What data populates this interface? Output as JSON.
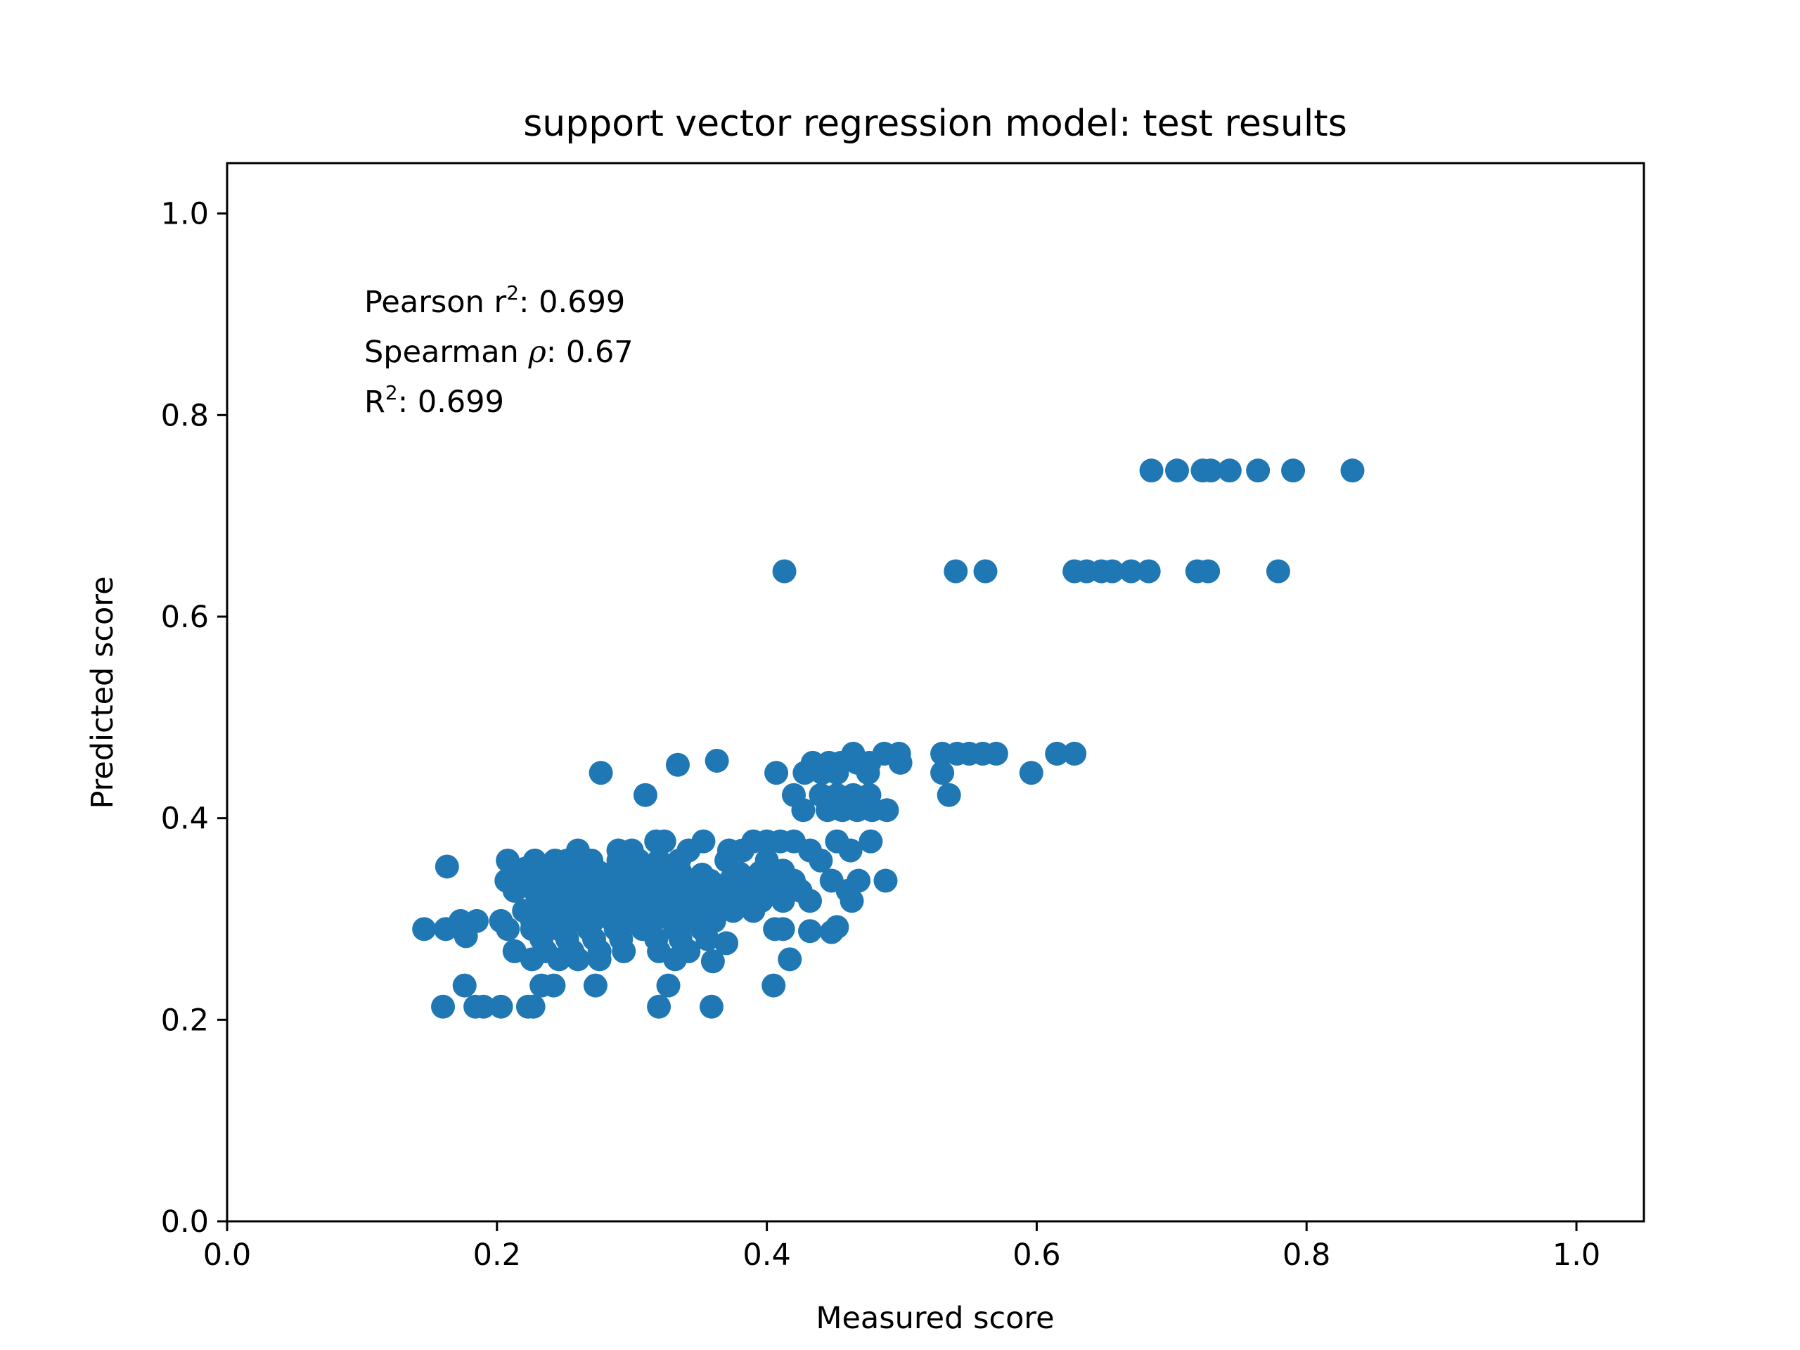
{
  "chart_data": {
    "type": "scatter",
    "title": "support vector regression model: test results",
    "xlabel": "Measured score",
    "ylabel": "Predicted score",
    "xlim": [
      0.0,
      1.05
    ],
    "ylim": [
      0.0,
      1.05
    ],
    "xticks": [
      "0.0",
      "0.2",
      "0.4",
      "0.6",
      "0.8",
      "1.0"
    ],
    "yticks": [
      "0.0",
      "0.2",
      "0.4",
      "0.6",
      "0.8",
      "1.0"
    ],
    "grid": false,
    "legend": null,
    "marker_color": "#1f77b4",
    "annotations": {
      "pearson": {
        "prefix": "Pearson r",
        "sup": "2",
        "suffix": ": 0.699"
      },
      "spearman": {
        "prefix": "Spearman ",
        "symbol": "ρ",
        "suffix": ": 0.67"
      },
      "r2": {
        "prefix": "R",
        "sup": "2",
        "suffix": ": 0.699"
      }
    },
    "points": [
      [
        0.685,
        0.745
      ],
      [
        0.704,
        0.745
      ],
      [
        0.723,
        0.745
      ],
      [
        0.729,
        0.745
      ],
      [
        0.743,
        0.745
      ],
      [
        0.764,
        0.745
      ],
      [
        0.79,
        0.745
      ],
      [
        0.834,
        0.745
      ],
      [
        0.413,
        0.645
      ],
      [
        0.54,
        0.645
      ],
      [
        0.562,
        0.645
      ],
      [
        0.628,
        0.645
      ],
      [
        0.637,
        0.645
      ],
      [
        0.648,
        0.645
      ],
      [
        0.656,
        0.645
      ],
      [
        0.67,
        0.645
      ],
      [
        0.683,
        0.645
      ],
      [
        0.719,
        0.645
      ],
      [
        0.727,
        0.645
      ],
      [
        0.779,
        0.645
      ],
      [
        0.464,
        0.464
      ],
      [
        0.487,
        0.464
      ],
      [
        0.498,
        0.464
      ],
      [
        0.53,
        0.464
      ],
      [
        0.541,
        0.464
      ],
      [
        0.55,
        0.464
      ],
      [
        0.56,
        0.464
      ],
      [
        0.57,
        0.464
      ],
      [
        0.615,
        0.464
      ],
      [
        0.628,
        0.464
      ],
      [
        0.434,
        0.455
      ],
      [
        0.446,
        0.455
      ],
      [
        0.455,
        0.455
      ],
      [
        0.467,
        0.455
      ],
      [
        0.476,
        0.455
      ],
      [
        0.499,
        0.455
      ],
      [
        0.363,
        0.457
      ],
      [
        0.334,
        0.453
      ],
      [
        0.277,
        0.445
      ],
      [
        0.407,
        0.445
      ],
      [
        0.428,
        0.445
      ],
      [
        0.441,
        0.445
      ],
      [
        0.452,
        0.445
      ],
      [
        0.475,
        0.445
      ],
      [
        0.53,
        0.445
      ],
      [
        0.596,
        0.445
      ],
      [
        0.31,
        0.423
      ],
      [
        0.42,
        0.423
      ],
      [
        0.44,
        0.423
      ],
      [
        0.452,
        0.423
      ],
      [
        0.464,
        0.423
      ],
      [
        0.476,
        0.423
      ],
      [
        0.535,
        0.423
      ],
      [
        0.427,
        0.408
      ],
      [
        0.445,
        0.408
      ],
      [
        0.456,
        0.408
      ],
      [
        0.467,
        0.408
      ],
      [
        0.478,
        0.408
      ],
      [
        0.489,
        0.408
      ],
      [
        0.318,
        0.377
      ],
      [
        0.324,
        0.377
      ],
      [
        0.353,
        0.377
      ],
      [
        0.39,
        0.377
      ],
      [
        0.4,
        0.377
      ],
      [
        0.41,
        0.377
      ],
      [
        0.42,
        0.377
      ],
      [
        0.452,
        0.377
      ],
      [
        0.477,
        0.377
      ],
      [
        0.26,
        0.368
      ],
      [
        0.29,
        0.368
      ],
      [
        0.3,
        0.368
      ],
      [
        0.342,
        0.368
      ],
      [
        0.372,
        0.368
      ],
      [
        0.382,
        0.368
      ],
      [
        0.432,
        0.368
      ],
      [
        0.462,
        0.368
      ],
      [
        0.208,
        0.358
      ],
      [
        0.228,
        0.358
      ],
      [
        0.243,
        0.358
      ],
      [
        0.252,
        0.358
      ],
      [
        0.27,
        0.358
      ],
      [
        0.29,
        0.358
      ],
      [
        0.305,
        0.358
      ],
      [
        0.32,
        0.358
      ],
      [
        0.335,
        0.358
      ],
      [
        0.37,
        0.358
      ],
      [
        0.4,
        0.358
      ],
      [
        0.44,
        0.358
      ],
      [
        0.163,
        0.352
      ],
      [
        0.221,
        0.35
      ],
      [
        0.234,
        0.348
      ],
      [
        0.248,
        0.346
      ],
      [
        0.262,
        0.345
      ],
      [
        0.276,
        0.346
      ],
      [
        0.292,
        0.344
      ],
      [
        0.308,
        0.343
      ],
      [
        0.322,
        0.345
      ],
      [
        0.336,
        0.346
      ],
      [
        0.352,
        0.344
      ],
      [
        0.38,
        0.345
      ],
      [
        0.395,
        0.346
      ],
      [
        0.412,
        0.348
      ],
      [
        0.207,
        0.338
      ],
      [
        0.218,
        0.338
      ],
      [
        0.232,
        0.338
      ],
      [
        0.247,
        0.338
      ],
      [
        0.259,
        0.338
      ],
      [
        0.271,
        0.338
      ],
      [
        0.285,
        0.338
      ],
      [
        0.299,
        0.338
      ],
      [
        0.313,
        0.338
      ],
      [
        0.327,
        0.338
      ],
      [
        0.343,
        0.338
      ],
      [
        0.358,
        0.338
      ],
      [
        0.373,
        0.338
      ],
      [
        0.389,
        0.338
      ],
      [
        0.405,
        0.338
      ],
      [
        0.42,
        0.338
      ],
      [
        0.448,
        0.338
      ],
      [
        0.468,
        0.338
      ],
      [
        0.488,
        0.338
      ],
      [
        0.213,
        0.328
      ],
      [
        0.228,
        0.328
      ],
      [
        0.243,
        0.328
      ],
      [
        0.258,
        0.328
      ],
      [
        0.273,
        0.328
      ],
      [
        0.288,
        0.328
      ],
      [
        0.303,
        0.328
      ],
      [
        0.318,
        0.328
      ],
      [
        0.333,
        0.328
      ],
      [
        0.348,
        0.328
      ],
      [
        0.363,
        0.328
      ],
      [
        0.378,
        0.328
      ],
      [
        0.393,
        0.328
      ],
      [
        0.41,
        0.328
      ],
      [
        0.425,
        0.328
      ],
      [
        0.46,
        0.328
      ],
      [
        0.232,
        0.318
      ],
      [
        0.246,
        0.318
      ],
      [
        0.262,
        0.318
      ],
      [
        0.276,
        0.318
      ],
      [
        0.291,
        0.318
      ],
      [
        0.306,
        0.318
      ],
      [
        0.321,
        0.318
      ],
      [
        0.336,
        0.318
      ],
      [
        0.351,
        0.318
      ],
      [
        0.366,
        0.318
      ],
      [
        0.381,
        0.318
      ],
      [
        0.396,
        0.318
      ],
      [
        0.412,
        0.318
      ],
      [
        0.432,
        0.318
      ],
      [
        0.463,
        0.318
      ],
      [
        0.22,
        0.308
      ],
      [
        0.24,
        0.308
      ],
      [
        0.255,
        0.308
      ],
      [
        0.27,
        0.308
      ],
      [
        0.285,
        0.308
      ],
      [
        0.3,
        0.308
      ],
      [
        0.315,
        0.308
      ],
      [
        0.33,
        0.308
      ],
      [
        0.345,
        0.308
      ],
      [
        0.36,
        0.308
      ],
      [
        0.375,
        0.308
      ],
      [
        0.39,
        0.308
      ],
      [
        0.173,
        0.298
      ],
      [
        0.185,
        0.298
      ],
      [
        0.203,
        0.298
      ],
      [
        0.226,
        0.298
      ],
      [
        0.241,
        0.298
      ],
      [
        0.256,
        0.298
      ],
      [
        0.271,
        0.298
      ],
      [
        0.286,
        0.298
      ],
      [
        0.301,
        0.298
      ],
      [
        0.316,
        0.298
      ],
      [
        0.331,
        0.298
      ],
      [
        0.346,
        0.298
      ],
      [
        0.361,
        0.298
      ],
      [
        0.146,
        0.29
      ],
      [
        0.162,
        0.29
      ],
      [
        0.208,
        0.29
      ],
      [
        0.226,
        0.29
      ],
      [
        0.246,
        0.29
      ],
      [
        0.268,
        0.29
      ],
      [
        0.288,
        0.29
      ],
      [
        0.308,
        0.29
      ],
      [
        0.332,
        0.29
      ],
      [
        0.352,
        0.29
      ],
      [
        0.406,
        0.29
      ],
      [
        0.412,
        0.29
      ],
      [
        0.432,
        0.288
      ],
      [
        0.448,
        0.287
      ],
      [
        0.452,
        0.292
      ],
      [
        0.177,
        0.283
      ],
      [
        0.233,
        0.28
      ],
      [
        0.252,
        0.28
      ],
      [
        0.272,
        0.28
      ],
      [
        0.292,
        0.28
      ],
      [
        0.318,
        0.28
      ],
      [
        0.336,
        0.28
      ],
      [
        0.356,
        0.28
      ],
      [
        0.37,
        0.276
      ],
      [
        0.213,
        0.268
      ],
      [
        0.236,
        0.268
      ],
      [
        0.256,
        0.268
      ],
      [
        0.276,
        0.268
      ],
      [
        0.294,
        0.268
      ],
      [
        0.32,
        0.268
      ],
      [
        0.342,
        0.268
      ],
      [
        0.226,
        0.26
      ],
      [
        0.246,
        0.26
      ],
      [
        0.26,
        0.26
      ],
      [
        0.276,
        0.26
      ],
      [
        0.332,
        0.26
      ],
      [
        0.36,
        0.258
      ],
      [
        0.417,
        0.26
      ],
      [
        0.176,
        0.234
      ],
      [
        0.233,
        0.234
      ],
      [
        0.242,
        0.234
      ],
      [
        0.273,
        0.234
      ],
      [
        0.327,
        0.234
      ],
      [
        0.405,
        0.234
      ],
      [
        0.16,
        0.213
      ],
      [
        0.184,
        0.213
      ],
      [
        0.19,
        0.213
      ],
      [
        0.203,
        0.213
      ],
      [
        0.223,
        0.213
      ],
      [
        0.227,
        0.213
      ],
      [
        0.32,
        0.213
      ],
      [
        0.359,
        0.213
      ]
    ]
  }
}
